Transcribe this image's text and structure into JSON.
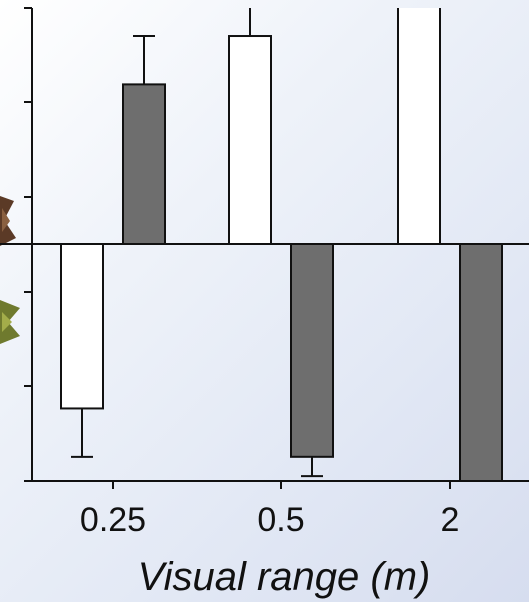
{
  "chart_data": {
    "type": "bar",
    "categories": [
      "0.25",
      "0.5",
      "2"
    ],
    "xlabel": "Visual range (m)",
    "ylabel": "",
    "title": "",
    "ylim": [
      -4.9,
      4.9
    ],
    "zero_line": true,
    "series": [
      {
        "color": "#ffffff",
        "values": [
          -3.4,
          4.3,
          5.0
        ],
        "errors": [
          1.0,
          0.6,
          null
        ]
      },
      {
        "color": "#6e6e6e",
        "values": [
          3.3,
          -4.4,
          -5.0
        ],
        "errors": [
          1.0,
          0.4,
          null
        ]
      }
    ],
    "legend_icons": [
      "brown-fish-icon",
      "green-fish-icon"
    ],
    "colors": {
      "light_bar": "#ffffff",
      "dark_bar": "#6e6e6e",
      "axis": "#111111"
    }
  }
}
